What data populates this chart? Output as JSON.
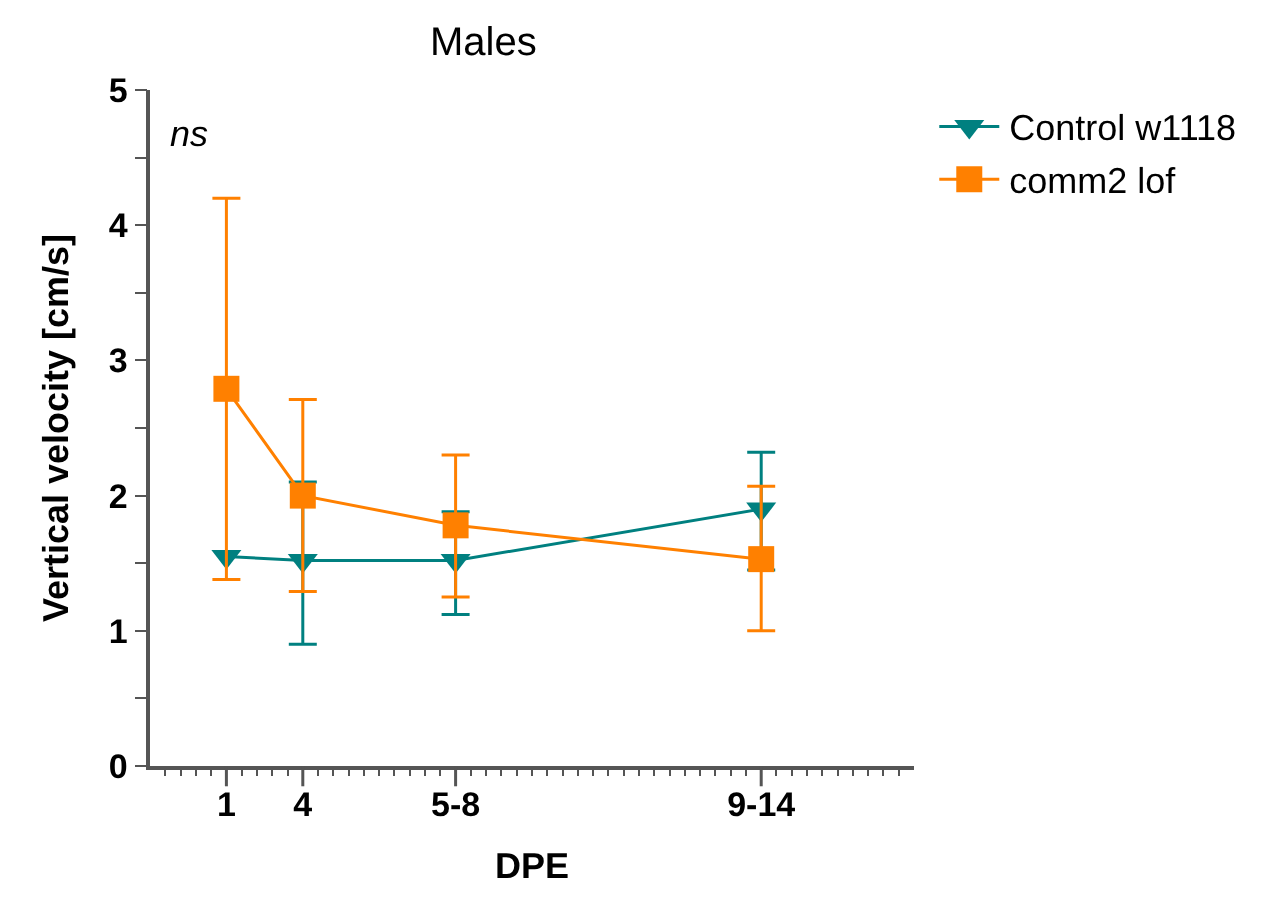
{
  "chart_data": {
    "type": "line",
    "title": "Males",
    "xlabel": "DPE",
    "ylabel": "Vertical velocity [cm/s]",
    "annotations": [
      "ns"
    ],
    "categories": [
      null,
      null,
      null,
      null,
      "1",
      null,
      null,
      null,
      null,
      "4",
      null,
      null,
      null,
      null,
      null,
      null,
      null,
      null,
      null,
      "5-8",
      null,
      null,
      null,
      null,
      null,
      null,
      null,
      null,
      null,
      null,
      null,
      null,
      null,
      null,
      null,
      null,
      null,
      null,
      null,
      "9-14",
      null,
      null,
      null,
      null,
      null,
      null,
      null,
      null,
      null
    ],
    "ylim": [
      0,
      5
    ],
    "yticks": [
      0,
      {
        "value": 0.5,
        "label": null
      },
      1,
      {
        "value": 1.5,
        "label": null
      },
      2,
      {
        "value": 2.5,
        "label": null
      },
      3,
      {
        "value": 3.5,
        "label": null
      },
      4,
      {
        "value": 4.5,
        "label": null
      },
      5
    ],
    "series": [
      {
        "name": "Control w1118",
        "color": "#008080",
        "marker": "triangle",
        "values": [
          null,
          null,
          null,
          null,
          1.55,
          null,
          null,
          null,
          null,
          1.52,
          null,
          null,
          null,
          null,
          null,
          null,
          null,
          null,
          null,
          1.52,
          null,
          null,
          null,
          null,
          null,
          null,
          null,
          null,
          null,
          null,
          null,
          null,
          null,
          null,
          null,
          null,
          null,
          null,
          null,
          1.9,
          null,
          null,
          null,
          null,
          null,
          null,
          null,
          null,
          null
        ],
        "errors": [
          null,
          null,
          null,
          null,
          null,
          null,
          null,
          null,
          null,
          [
            0.9,
            2.1
          ],
          null,
          null,
          null,
          null,
          null,
          null,
          null,
          null,
          null,
          [
            1.12,
            1.88
          ],
          null,
          null,
          null,
          null,
          null,
          null,
          null,
          null,
          null,
          null,
          null,
          null,
          null,
          null,
          null,
          null,
          null,
          null,
          null,
          [
            1.45,
            2.32
          ],
          null,
          null,
          null,
          null,
          null,
          null,
          null,
          null,
          null
        ]
      },
      {
        "name": "comm2 lof",
        "color": "#ff8000",
        "marker": "square",
        "values": [
          null,
          null,
          null,
          null,
          2.79,
          null,
          null,
          null,
          null,
          2.0,
          null,
          null,
          null,
          null,
          null,
          null,
          null,
          null,
          null,
          1.78,
          null,
          null,
          null,
          null,
          null,
          null,
          null,
          null,
          null,
          null,
          null,
          null,
          null,
          null,
          null,
          null,
          null,
          null,
          null,
          1.53,
          null,
          null,
          null,
          null,
          null,
          null,
          null,
          null,
          null
        ],
        "errors": [
          null,
          null,
          null,
          null,
          [
            1.38,
            4.2
          ],
          null,
          null,
          null,
          null,
          [
            1.29,
            2.71
          ],
          null,
          null,
          null,
          null,
          null,
          null,
          null,
          null,
          null,
          [
            1.25,
            2.3
          ],
          null,
          null,
          null,
          null,
          null,
          null,
          null,
          null,
          null,
          null,
          null,
          null,
          null,
          null,
          null,
          null,
          null,
          null,
          null,
          [
            1.0,
            2.07
          ],
          null,
          null,
          null,
          null,
          null,
          null,
          null,
          null,
          null
        ]
      }
    ],
    "legend": "top right"
  }
}
